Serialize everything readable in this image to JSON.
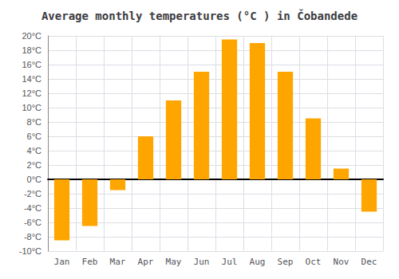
{
  "chart_data": {
    "type": "bar",
    "title": "Average monthly temperatures (°C ) in Čobandede",
    "categories": [
      "Jan",
      "Feb",
      "Mar",
      "Apr",
      "May",
      "Jun",
      "Jul",
      "Aug",
      "Sep",
      "Oct",
      "Nov",
      "Dec"
    ],
    "values": [
      -8.5,
      -6.5,
      -1.5,
      6.0,
      11.0,
      15.0,
      19.5,
      19.0,
      15.0,
      8.5,
      1.5,
      -4.5
    ],
    "color": "#FFA500",
    "ylim": [
      -10,
      20
    ],
    "yticks": [
      {
        "value": -10,
        "label": "-10°C"
      },
      {
        "value": -8,
        "label": "-8°C"
      },
      {
        "value": -6,
        "label": "-6°C"
      },
      {
        "value": -4,
        "label": "-4°C"
      },
      {
        "value": -2,
        "label": "-2°C"
      },
      {
        "value": 0,
        "label": "0°C"
      },
      {
        "value": 2,
        "label": "2°C"
      },
      {
        "value": 4,
        "label": "4°C"
      },
      {
        "value": 6,
        "label": "6°C"
      },
      {
        "value": 8,
        "label": "8°C"
      },
      {
        "value": 10,
        "label": "10°C"
      },
      {
        "value": 12,
        "label": "12°C"
      },
      {
        "value": 14,
        "label": "14°C"
      },
      {
        "value": 16,
        "label": "16°C"
      },
      {
        "value": 18,
        "label": "18°C"
      },
      {
        "value": 20,
        "label": "20°C"
      }
    ],
    "grid": true
  }
}
